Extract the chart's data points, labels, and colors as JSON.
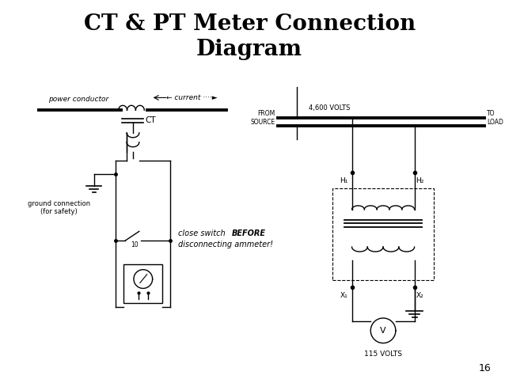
{
  "title_line1": "CT & PT Meter Connection",
  "title_line2": "Diagram",
  "title_fontsize": 20,
  "title_fontweight": "bold",
  "bg_color": "#ffffff",
  "fig_width": 6.38,
  "fig_height": 4.79,
  "page_number": "16"
}
